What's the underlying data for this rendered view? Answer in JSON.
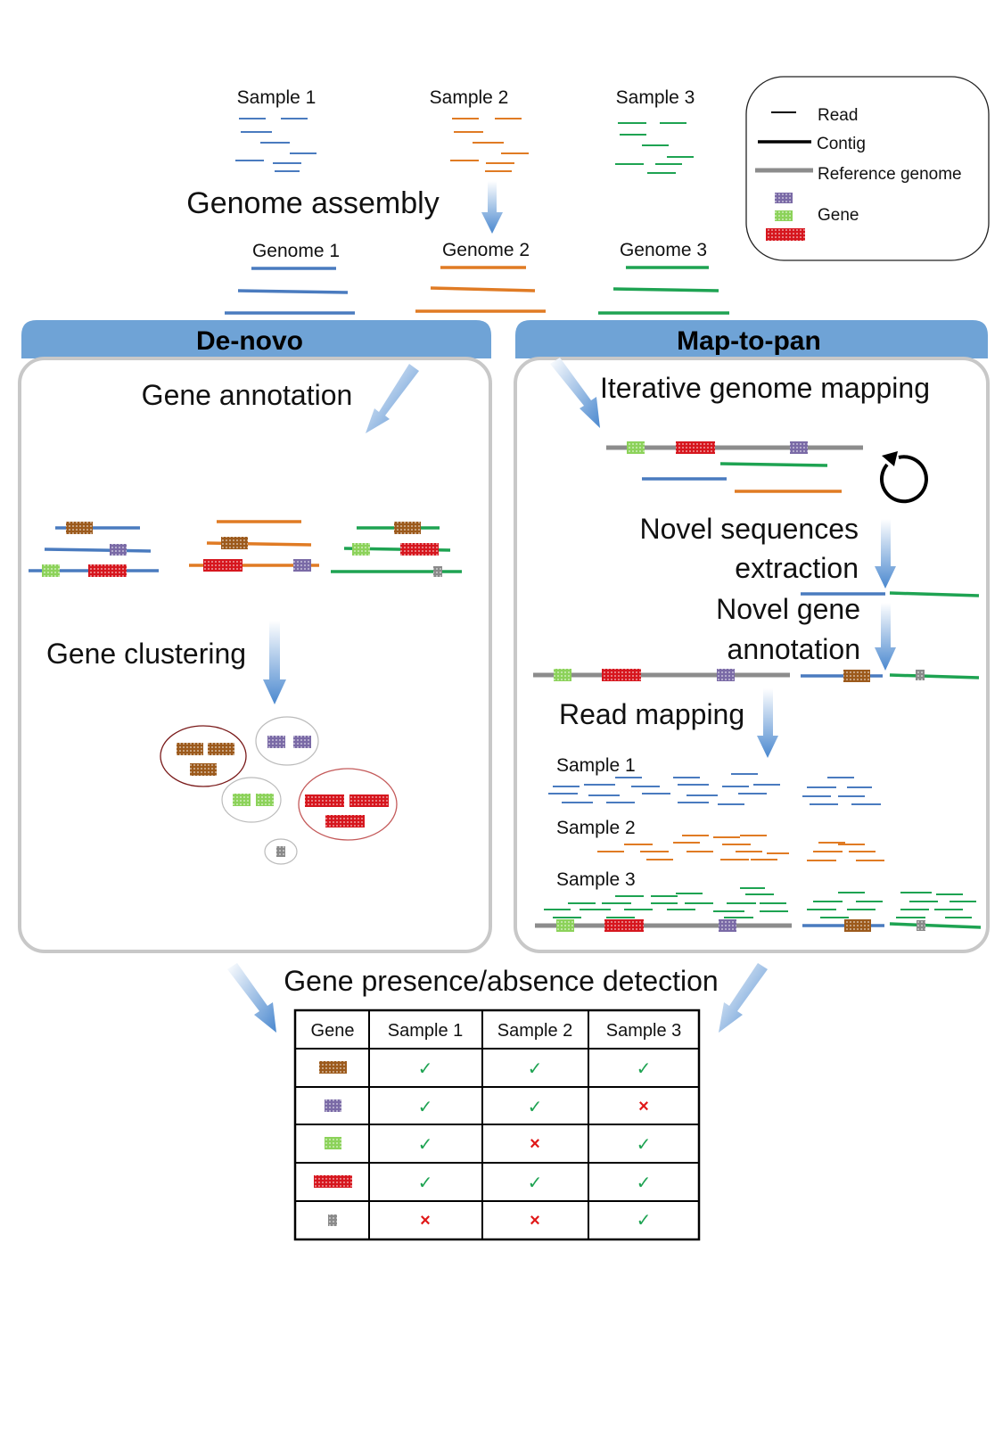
{
  "samples": [
    "Sample 1",
    "Sample 2",
    "Sample 3"
  ],
  "genome_assembly": "Genome assembly",
  "genomes": [
    "Genome 1",
    "Genome 2",
    "Genome 3"
  ],
  "legend": {
    "read": "Read",
    "contig": "Contig",
    "reference": "Reference genome",
    "gene": "Gene"
  },
  "denovo": {
    "title": "De-novo",
    "gene_annotation": "Gene annotation",
    "gene_clustering": "Gene clustering"
  },
  "maptopan": {
    "title": "Map-to-pan",
    "iterative_mapping": "Iterative genome mapping",
    "novel_seq_line1": "Novel sequences",
    "novel_seq_line2": "extraction",
    "novel_gene_line1": "Novel gene",
    "novel_gene_line2": "annotation",
    "read_mapping": "Read mapping",
    "samples": [
      "Sample 1",
      "Sample 2",
      "Sample 3"
    ]
  },
  "detection_title": "Gene presence/absence detection",
  "table": {
    "headers": [
      "Gene",
      "Sample 1",
      "Sample 2",
      "Sample 3"
    ],
    "rows": [
      {
        "gene": "brown",
        "marks": [
          "✓",
          "✓",
          "✓"
        ]
      },
      {
        "gene": "purple",
        "marks": [
          "✓",
          "✓",
          "×"
        ]
      },
      {
        "gene": "green",
        "marks": [
          "✓",
          "×",
          "✓"
        ]
      },
      {
        "gene": "red",
        "marks": [
          "✓",
          "✓",
          "✓"
        ]
      },
      {
        "gene": "grey",
        "marks": [
          "×",
          "×",
          "✓"
        ]
      }
    ]
  },
  "colors": {
    "sample1": "#4a7bbf",
    "sample2": "#e07b24",
    "sample3": "#1ea352",
    "reference": "#8c8c8c",
    "panel_header": "#6fa3d6",
    "gene_brown": "#9c5a1c",
    "gene_purple": "#7a6aa6",
    "gene_green": "#8cd25a",
    "gene_red": "#d6161e",
    "gene_grey": "#8a8a8a",
    "check": "#1ea352",
    "cross": "#e01818"
  }
}
